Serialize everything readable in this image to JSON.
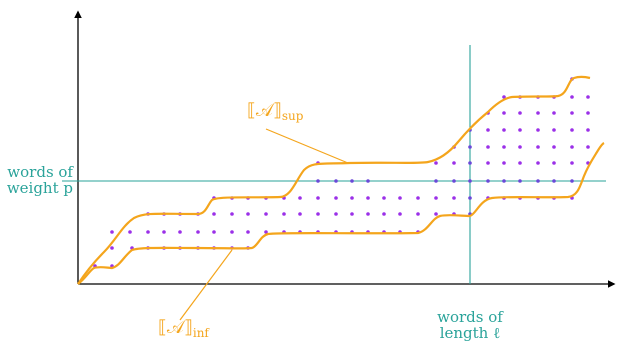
{
  "labels": {
    "sup": {
      "main": "⟦𝒜⟧",
      "sub": "sup"
    },
    "inf": {
      "main": "⟦𝒜⟧",
      "sub": "inf"
    },
    "weight": {
      "line1": "words of",
      "line2": "weight p"
    },
    "length": {
      "line1": "words of",
      "line2": "length ℓ"
    }
  },
  "colors": {
    "curve": "#f4a51c",
    "teal": "#2aa39a",
    "dot": "#9b30e8",
    "dot_on_teal": "#6a48d8",
    "axis": "#000000"
  }
}
